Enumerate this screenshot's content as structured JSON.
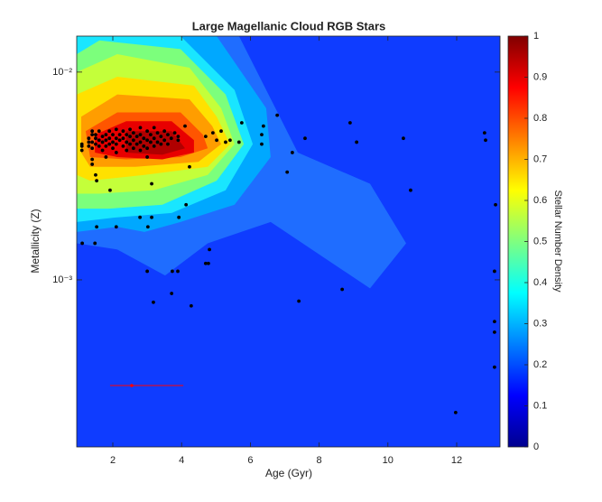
{
  "chart_data": {
    "type": "contour_scatter",
    "title": "Large Magellanic Cloud RGB Stars",
    "xlabel": "Age (Gyr)",
    "ylabel": "Metallicity (Z)",
    "xlim": [
      0.95,
      13.26
    ],
    "ylim": [
      0.000157,
      0.0149
    ],
    "yscale": "log",
    "xticks": [
      2,
      4,
      6,
      8,
      10,
      12
    ],
    "yticks": [
      {
        "value": 0.001,
        "label": "10⁻³"
      },
      {
        "value": 0.01,
        "label": "10⁻²"
      }
    ],
    "background_color": "#0f3cff",
    "contours": [
      {
        "color": "#1f6dff",
        "x": [
          0.95,
          5.67,
          7.38,
          9.48,
          10.53,
          9.48,
          6.59,
          4.76,
          3.52,
          2.13,
          0.95
        ],
        "y": [
          0.0149,
          0.0149,
          0.0041,
          0.0029,
          0.0015,
          0.00091,
          0.0019,
          0.0015,
          0.00105,
          0.0014,
          0.0015
        ]
      },
      {
        "color": "#00a8ff",
        "x": [
          0.95,
          5.02,
          6.46,
          6.59,
          5.54,
          3.97,
          2.92,
          2.13,
          0.95
        ],
        "y": [
          0.0149,
          0.0149,
          0.0067,
          0.0039,
          0.0023,
          0.0019,
          0.0017,
          0.0018,
          0.0017
        ]
      },
      {
        "color": "#19e6ff",
        "x": [
          0.95,
          3.97,
          5.54,
          6.07,
          5.28,
          3.71,
          2.13,
          0.95
        ],
        "y": [
          0.0149,
          0.0149,
          0.0082,
          0.0045,
          0.0027,
          0.0021,
          0.002,
          0.0019
        ]
      },
      {
        "color": "#7cff7c",
        "x": [
          0.95,
          1.61,
          3.97,
          5.28,
          5.81,
          5.02,
          3.44,
          1.87,
          0.95
        ],
        "y": [
          0.0122,
          0.0142,
          0.0129,
          0.0078,
          0.0045,
          0.003,
          0.0023,
          0.0022,
          0.0022
        ]
      },
      {
        "color": "#c4ff3a",
        "x": [
          0.95,
          2.13,
          4.23,
          5.15,
          5.54,
          4.76,
          3.18,
          1.61,
          0.95
        ],
        "y": [
          0.01,
          0.0122,
          0.0105,
          0.0067,
          0.0045,
          0.0032,
          0.0027,
          0.0026,
          0.0026
        ]
      },
      {
        "color": "#ffe100",
        "x": [
          0.95,
          2.13,
          4.36,
          5.02,
          5.41,
          4.76,
          2.92,
          1.34,
          0.95
        ],
        "y": [
          0.0078,
          0.0095,
          0.0086,
          0.0061,
          0.0045,
          0.0035,
          0.0032,
          0.003,
          0.0032
        ]
      },
      {
        "color": "#ff9d00",
        "x": [
          1.08,
          2.13,
          4.23,
          4.89,
          5.15,
          4.49,
          2.66,
          1.34,
          1.08
        ],
        "y": [
          0.0061,
          0.0078,
          0.0074,
          0.0055,
          0.0045,
          0.0037,
          0.0035,
          0.0035,
          0.0041
        ]
      },
      {
        "color": "#ff5500",
        "x": [
          1.21,
          2.13,
          3.97,
          4.62,
          4.76,
          3.97,
          2.39,
          1.34
        ],
        "y": [
          0.0052,
          0.0064,
          0.0064,
          0.005,
          0.0043,
          0.0039,
          0.0038,
          0.0039
        ]
      },
      {
        "color": "#e80000",
        "x": [
          1.48,
          2.39,
          3.71,
          4.36,
          4.36,
          3.44,
          2.13,
          1.48
        ],
        "y": [
          0.005,
          0.0058,
          0.0058,
          0.0047,
          0.0041,
          0.0038,
          0.0039,
          0.0041
        ]
      },
      {
        "color": "#b00000",
        "x": [
          2.39,
          3.71,
          4.1,
          3.44,
          2.39
        ],
        "y": [
          0.0052,
          0.0052,
          0.0043,
          0.004,
          0.0041
        ]
      }
    ],
    "scatter": {
      "color": "#000000",
      "x": [
        1.1,
        1.1,
        1.1,
        1.3,
        1.3,
        1.3,
        1.4,
        1.4,
        1.4,
        1.4,
        1.4,
        1.4,
        1.5,
        1.5,
        1.5,
        1.6,
        1.6,
        1.6,
        1.7,
        1.7,
        1.7,
        1.8,
        1.8,
        1.8,
        1.8,
        1.9,
        1.9,
        1.9,
        2.0,
        2.0,
        2.0,
        2.1,
        2.1,
        2.1,
        2.1,
        2.2,
        2.2,
        2.3,
        2.3,
        2.3,
        2.4,
        2.4,
        2.4,
        2.5,
        2.5,
        2.5,
        2.6,
        2.6,
        2.6,
        2.7,
        2.7,
        2.8,
        2.8,
        2.8,
        2.8,
        2.9,
        2.9,
        3.0,
        3.0,
        3.0,
        3.0,
        3.1,
        3.1,
        3.2,
        3.2,
        3.2,
        3.3,
        3.3,
        3.4,
        3.4,
        3.5,
        3.5,
        3.6,
        3.6,
        3.7,
        3.8,
        3.9,
        3.9,
        6.78,
        5.75,
        6.38,
        6.33,
        6.33,
        5.67,
        7.59,
        7.22,
        7.07,
        8.9,
        9.09,
        10.45,
        10.66,
        12.81,
        12.84,
        13.13,
        13.1,
        13.1,
        13.1,
        13.1,
        11.97,
        8.67,
        7.41,
        4.81,
        4.7,
        4.78,
        3.0,
        3.73,
        3.89,
        3.71,
        3.18,
        4.28,
        1.53,
        1.11,
        1.48,
        2.1,
        2.79,
        3.13,
        3.02,
        3.92,
        4.13,
        1.92,
        1.53,
        1.5,
        3.13,
        4.23,
        4.91,
        5.02,
        5.28,
        5.41,
        5.15,
        4.7,
        4.1
      ],
      "y": [
        0.0045,
        0.0042,
        0.0044,
        0.0048,
        0.0044,
        0.0046,
        0.005,
        0.0046,
        0.0052,
        0.0043,
        0.0038,
        0.0036,
        0.0048,
        0.0045,
        0.005,
        0.0047,
        0.0044,
        0.0052,
        0.0049,
        0.0046,
        0.0042,
        0.005,
        0.0047,
        0.0044,
        0.0039,
        0.0052,
        0.0048,
        0.0045,
        0.005,
        0.0046,
        0.0043,
        0.0053,
        0.0048,
        0.0045,
        0.0041,
        0.005,
        0.0047,
        0.0052,
        0.0048,
        0.0044,
        0.005,
        0.0046,
        0.0042,
        0.0053,
        0.0049,
        0.0045,
        0.0051,
        0.0047,
        0.0043,
        0.0049,
        0.0045,
        0.0054,
        0.005,
        0.0046,
        0.0042,
        0.0048,
        0.0044,
        0.0052,
        0.0047,
        0.0043,
        0.0039,
        0.005,
        0.0046,
        0.0054,
        0.0048,
        0.0044,
        0.0051,
        0.0046,
        0.0049,
        0.0045,
        0.0052,
        0.0047,
        0.005,
        0.0045,
        0.0048,
        0.0051,
        0.0047,
        0.0049,
        0.0062,
        0.0057,
        0.0055,
        0.005,
        0.0045,
        0.0046,
        0.0048,
        0.0041,
        0.0033,
        0.0057,
        0.0046,
        0.0048,
        0.0027,
        0.0051,
        0.0047,
        0.0023,
        0.0011,
        0.00063,
        0.00056,
        0.00038,
        0.00023,
        0.0009,
        0.00079,
        0.0014,
        0.0012,
        0.0012,
        0.0011,
        0.0011,
        0.0011,
        0.00086,
        0.00078,
        0.00075,
        0.0018,
        0.0015,
        0.0015,
        0.0018,
        0.002,
        0.002,
        0.0018,
        0.002,
        0.0023,
        0.0027,
        0.003,
        0.0032,
        0.0029,
        0.0035,
        0.0051,
        0.0047,
        0.0046,
        0.0047,
        0.0052,
        0.0049,
        0.0055
      ]
    },
    "error_bar": {
      "color": "#ff0000",
      "x": 2.55,
      "y": 0.00031,
      "x_low": 1.92,
      "x_high": 4.05
    },
    "colorbar": {
      "label": "Stellar Number Density",
      "colormap": "jet",
      "lim": [
        0,
        1
      ],
      "ticks": [
        0,
        0.1,
        0.2,
        0.3,
        0.4,
        0.5,
        0.6,
        0.7,
        0.8,
        0.9,
        1
      ]
    }
  }
}
